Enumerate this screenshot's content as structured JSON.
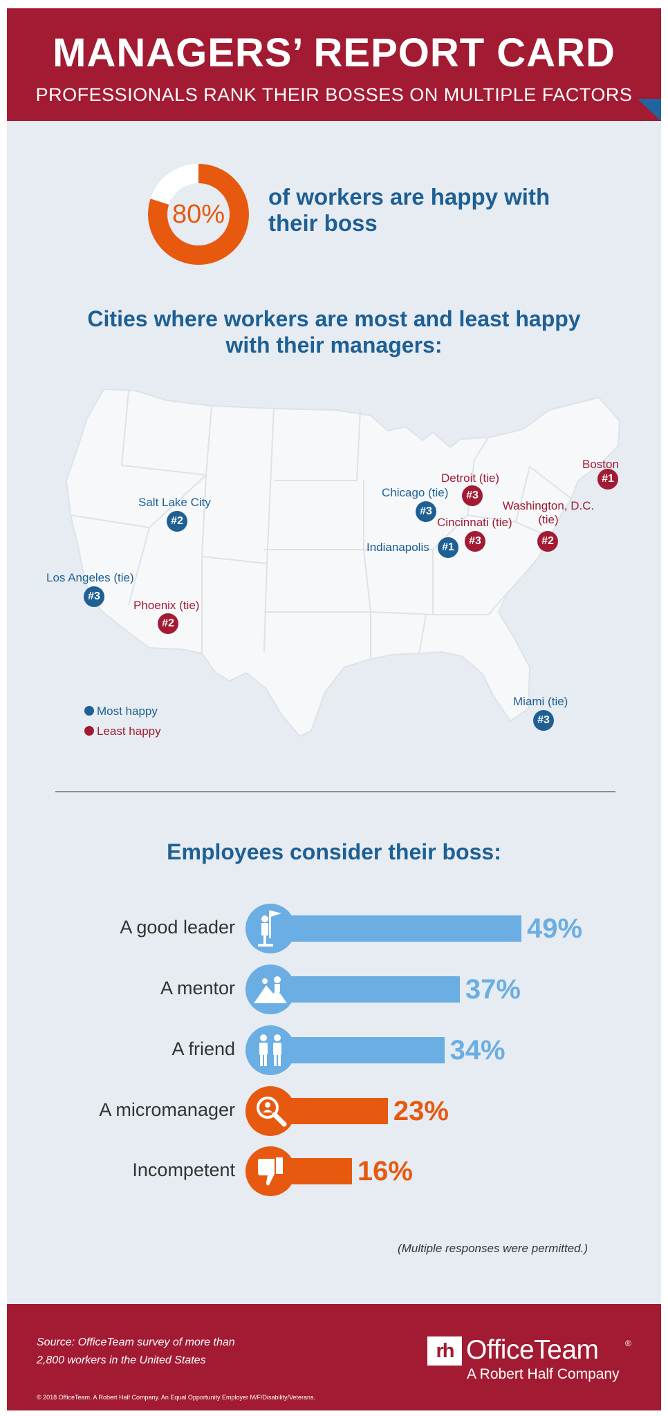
{
  "header": {
    "title": "MANAGERS’ REPORT CARD",
    "subtitle": "PROFESSIONALS RANK THEIR BOSSES ON MULTIPLE FACTORS"
  },
  "stat": {
    "percent_label": "80%",
    "percent_value": 80,
    "text": "of workers are happy with their boss"
  },
  "cities": {
    "title": "Cities where workers are most and least happy with their managers:",
    "items": [
      {
        "name": "Boston",
        "rank": "#1",
        "group": "least"
      },
      {
        "name": "Detroit (tie)",
        "rank": "#3",
        "group": "least"
      },
      {
        "name": "Chicago (tie)",
        "rank": "#3",
        "group": "most"
      },
      {
        "name": "Washington, D.C. (tie)",
        "rank": "#2",
        "group": "least"
      },
      {
        "name": "Cincinnati (tie)",
        "rank": "#3",
        "group": "least"
      },
      {
        "name": "Indianapolis",
        "rank": "#1",
        "group": "most"
      },
      {
        "name": "Salt Lake City",
        "rank": "#2",
        "group": "most"
      },
      {
        "name": "Los Angeles (tie)",
        "rank": "#3",
        "group": "most"
      },
      {
        "name": "Phoenix (tie)",
        "rank": "#2",
        "group": "least"
      },
      {
        "name": "Miami (tie)",
        "rank": "#3",
        "group": "most"
      }
    ],
    "legend": {
      "most": "Most happy",
      "least": "Least happy"
    }
  },
  "bars": {
    "title": "Employees consider their boss:",
    "items": [
      {
        "label": "A good leader",
        "value": 49,
        "value_label": "49%",
        "icon": "leader-flag-icon",
        "color": "#6aaee3"
      },
      {
        "label": "A mentor",
        "value": 37,
        "value_label": "37%",
        "icon": "mentor-climb-icon",
        "color": "#6aaee3"
      },
      {
        "label": "A friend",
        "value": 34,
        "value_label": "34%",
        "icon": "friends-icon",
        "color": "#6aaee3"
      },
      {
        "label": "A micromanager",
        "value": 23,
        "value_label": "23%",
        "icon": "magnifier-person-icon",
        "color": "#e6590f"
      },
      {
        "label": "Incompetent",
        "value": 16,
        "value_label": "16%",
        "icon": "thumbs-down-icon",
        "color": "#e6590f"
      }
    ],
    "note": "(Multiple responses were permitted.)"
  },
  "footer": {
    "source_line1": "Source: OfficeTeam survey of more than",
    "source_line2": "2,800 workers in the United States",
    "copyright": "© 2018 OfficeTeam. A Robert Half Company. An Equal Opportunity Employer M/F/Disability/Veterans.",
    "logo_mark": "rh",
    "logo_name": "OfficeTeam",
    "logo_reg": "®",
    "logo_sub": "A Robert Half Company"
  },
  "colors": {
    "brand_red": "#a31b33",
    "title_blue": "#1e5f94",
    "bar_blue": "#6aaee3",
    "bar_orange": "#e6590f",
    "background": "#e6ecf1"
  }
}
